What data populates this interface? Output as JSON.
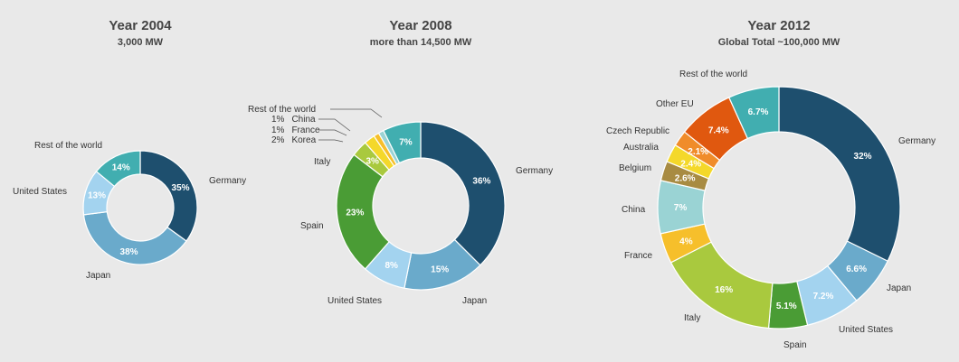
{
  "chart_data": [
    {
      "type": "pie",
      "title": "Year 2004",
      "subtitle": "3,000 MW",
      "slices": [
        {
          "label": "Germany",
          "value": 35,
          "value_label": "35%",
          "color": "#1e4f6e"
        },
        {
          "label": "Japan",
          "value": 38,
          "value_label": "38%",
          "color": "#6aaacb"
        },
        {
          "label": "United States",
          "value": 13,
          "value_label": "13%",
          "color": "#a3d3ef"
        },
        {
          "label": "Rest of the world",
          "value": 14,
          "value_label": "14%",
          "color": "#41aeb0"
        }
      ]
    },
    {
      "type": "pie",
      "title": "Year 2008",
      "subtitle": "more than 14,500 MW",
      "slices": [
        {
          "label": "Germany",
          "value": 36,
          "value_label": "36%",
          "color": "#1e4f6e"
        },
        {
          "label": "Japan",
          "value": 15,
          "value_label": "15%",
          "color": "#6aaacb"
        },
        {
          "label": "United States",
          "value": 8,
          "value_label": "8%",
          "color": "#a3d3ef"
        },
        {
          "label": "Spain",
          "value": 23,
          "value_label": "23%",
          "color": "#4a9c35"
        },
        {
          "label": "Italy",
          "value": 3,
          "value_label": "3%",
          "color": "#a9c93e"
        },
        {
          "label": "Korea",
          "value": 2,
          "value_label": "2%",
          "color": "#f4d82a"
        },
        {
          "label": "France",
          "value": 1,
          "value_label": "1%",
          "color": "#f6bf2b"
        },
        {
          "label": "China",
          "value": 1,
          "value_label": "1%",
          "color": "#9ad3d4"
        },
        {
          "label": "Rest of the world",
          "value": 7,
          "value_label": "7%",
          "color": "#41aeb0"
        }
      ]
    },
    {
      "type": "pie",
      "title": "Year 2012",
      "subtitle": "Global Total ~100,000 MW",
      "slices": [
        {
          "label": "Germany",
          "value": 32,
          "value_label": "32%",
          "color": "#1e4f6e"
        },
        {
          "label": "Japan",
          "value": 6.6,
          "value_label": "6.6%",
          "color": "#6aaacb"
        },
        {
          "label": "United States",
          "value": 7.2,
          "value_label": "7.2%",
          "color": "#a3d3ef"
        },
        {
          "label": "Spain",
          "value": 5.1,
          "value_label": "5.1%",
          "color": "#4a9c35"
        },
        {
          "label": "Italy",
          "value": 16,
          "value_label": "16%",
          "color": "#a9c93e"
        },
        {
          "label": "France",
          "value": 4,
          "value_label": "4%",
          "color": "#f6bf2b"
        },
        {
          "label": "China",
          "value": 7,
          "value_label": "7%",
          "color": "#9ad3d4"
        },
        {
          "label": "Belgium",
          "value": 2.6,
          "value_label": "2.6%",
          "color": "#a88b42"
        },
        {
          "label": "Australia",
          "value": 2.4,
          "value_label": "2.4%",
          "color": "#f4d82a"
        },
        {
          "label": "Czech Republic",
          "value": 2.1,
          "value_label": "2.1%",
          "color": "#f08c2a"
        },
        {
          "label": "Other EU",
          "value": 7.4,
          "value_label": "7.4%",
          "color": "#e0580f"
        },
        {
          "label": "Rest of the world",
          "value": 6.7,
          "value_label": "6.7%",
          "color": "#41aeb0"
        }
      ]
    }
  ]
}
